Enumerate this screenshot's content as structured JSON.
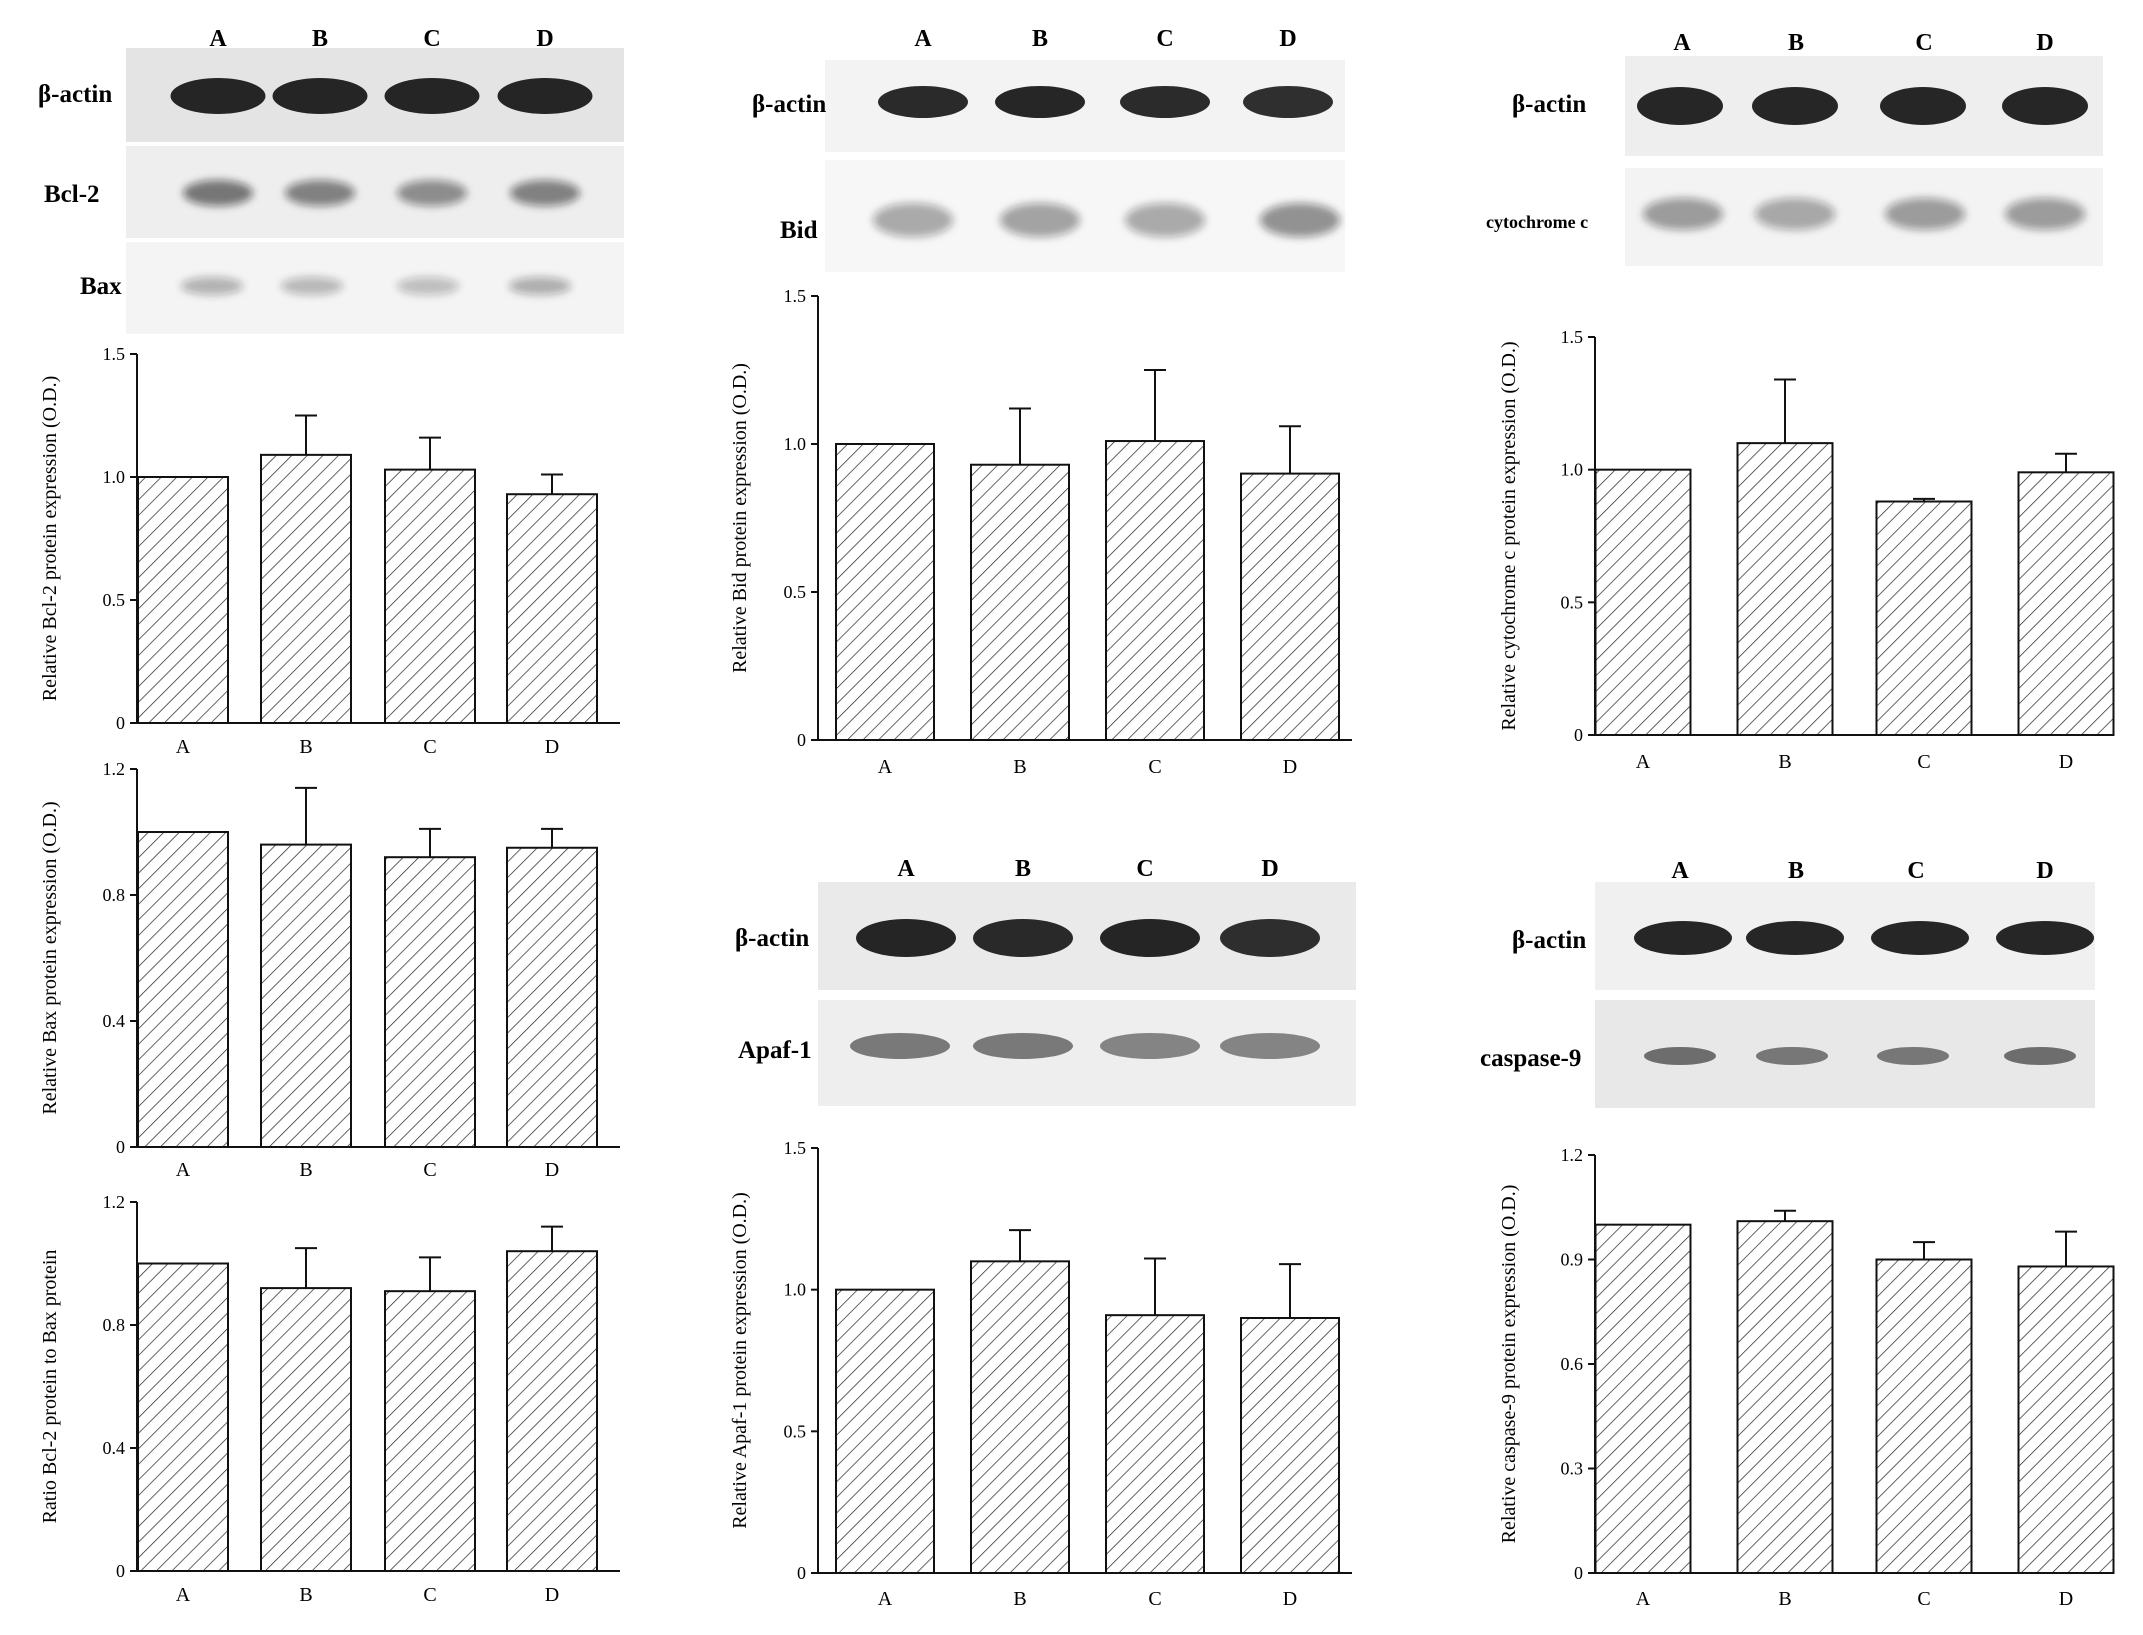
{
  "blots": [
    {
      "lanes": [
        "A",
        "B",
        "C",
        "D"
      ],
      "proteins": [
        "β-actin",
        "Bcl-2",
        "Bax"
      ]
    },
    {
      "lanes": [
        "A",
        "B",
        "C",
        "D"
      ],
      "proteins": [
        "β-actin",
        "Bid"
      ]
    },
    {
      "lanes": [
        "A",
        "B",
        "C",
        "D"
      ],
      "proteins": [
        "β-actin",
        "cytochrome c"
      ]
    },
    {
      "lanes": [
        "A",
        "B",
        "C",
        "D"
      ],
      "proteins": [
        "β-actin",
        "Apaf-1"
      ]
    },
    {
      "lanes": [
        "A",
        "B",
        "C",
        "D"
      ],
      "proteins": [
        "β-actin",
        "caspase-9"
      ]
    }
  ],
  "chart_data": [
    {
      "type": "bar",
      "categories": [
        "A",
        "B",
        "C",
        "D"
      ],
      "values": [
        1.0,
        1.09,
        1.03,
        0.93
      ],
      "errors": [
        0,
        0.16,
        0.13,
        0.08
      ],
      "ylabel": "Relative Bcl-2 protein expression  (O.D.)",
      "ylim": [
        0,
        1.5
      ],
      "yticks": [
        "0",
        "0.5",
        "1.0",
        "1.5"
      ],
      "tick_values": [
        0,
        0.5,
        1.0,
        1.5
      ]
    },
    {
      "type": "bar",
      "categories": [
        "A",
        "B",
        "C",
        "D"
      ],
      "values": [
        1.0,
        0.96,
        0.92,
        0.95
      ],
      "errors": [
        0,
        0.18,
        0.09,
        0.06
      ],
      "ylabel": "Relative Bax protein expression  (O.D.)",
      "ylim": [
        0,
        1.2
      ],
      "yticks": [
        "0",
        "0.4",
        "0.8",
        "1.2"
      ],
      "tick_values": [
        0,
        0.4,
        0.8,
        1.2
      ]
    },
    {
      "type": "bar",
      "categories": [
        "A",
        "B",
        "C",
        "D"
      ],
      "values": [
        1.0,
        0.92,
        0.91,
        1.04
      ],
      "errors": [
        0,
        0.13,
        0.11,
        0.08
      ],
      "ylabel": "Ratio Bcl-2 protein to Bax protein",
      "ylim": [
        0,
        1.2
      ],
      "yticks": [
        "0",
        "0.4",
        "0.8",
        "1.2"
      ],
      "tick_values": [
        0,
        0.4,
        0.8,
        1.2
      ]
    },
    {
      "type": "bar",
      "categories": [
        "A",
        "B",
        "C",
        "D"
      ],
      "values": [
        1.0,
        0.93,
        1.01,
        0.9
      ],
      "errors": [
        0,
        0.19,
        0.24,
        0.16
      ],
      "ylabel": "Relative Bid protein expression  (O.D.)",
      "ylim": [
        0,
        1.5
      ],
      "yticks": [
        "0",
        "0.5",
        "1.0",
        "1.5"
      ],
      "tick_values": [
        0,
        0.5,
        1.0,
        1.5
      ]
    },
    {
      "type": "bar",
      "categories": [
        "A",
        "B",
        "C",
        "D"
      ],
      "values": [
        1.0,
        1.1,
        0.91,
        0.9
      ],
      "errors": [
        0,
        0.11,
        0.2,
        0.19
      ],
      "ylabel": "Relative Apaf-1 protein expression  (O.D.)",
      "ylim": [
        0,
        1.5
      ],
      "yticks": [
        "0",
        "0.5",
        "1.0",
        "1.5"
      ],
      "tick_values": [
        0,
        0.5,
        1.0,
        1.5
      ]
    },
    {
      "type": "bar",
      "categories": [
        "A",
        "B",
        "C",
        "D"
      ],
      "values": [
        1.0,
        1.1,
        0.88,
        0.99
      ],
      "errors": [
        0,
        0.24,
        0.01,
        0.07
      ],
      "ylabel": "Relative cytochrome c protein expression  (O.D.)",
      "ylim": [
        0,
        1.5
      ],
      "yticks": [
        "0",
        "0.5",
        "1.0",
        "1.5"
      ],
      "tick_values": [
        0,
        0.5,
        1.0,
        1.5
      ]
    },
    {
      "type": "bar",
      "categories": [
        "A",
        "B",
        "C",
        "D"
      ],
      "values": [
        1.0,
        1.01,
        0.9,
        0.88
      ],
      "errors": [
        0,
        0.03,
        0.05,
        0.1
      ],
      "ylabel": "Relative caspase-9 protein expression  (O.D.)",
      "ylim": [
        0,
        1.2
      ],
      "yticks": [
        "0",
        "0.3",
        "0.6",
        "0.9",
        "1.2"
      ],
      "tick_values": [
        0,
        0.3,
        0.6,
        0.9,
        1.2
      ]
    }
  ]
}
